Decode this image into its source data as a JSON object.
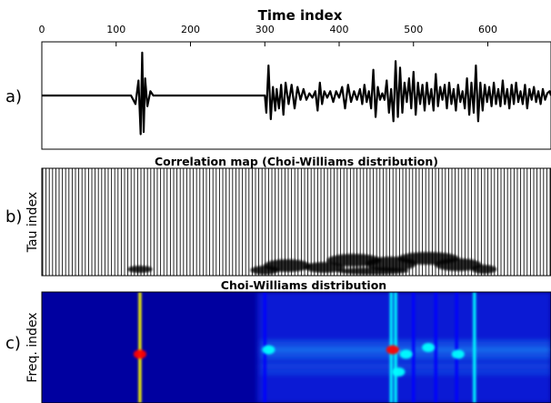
{
  "chart_data": [
    {
      "panel": "a)",
      "type": "line",
      "xlabel": "Time index",
      "xlim": [
        0,
        685
      ],
      "ylim": [
        -1.25,
        1.25
      ],
      "x_ticks": [
        0,
        100,
        200,
        300,
        400,
        500,
        600
      ],
      "series": [
        {
          "color": "#000000",
          "x": [
            0,
            120,
            126,
            130,
            133,
            135,
            137,
            139,
            142,
            146,
            150,
            300,
            302,
            305,
            308,
            311,
            314,
            316,
            319,
            322,
            325,
            328,
            332,
            336,
            340,
            344,
            348,
            352,
            356,
            360,
            364,
            368,
            371,
            374,
            377,
            380,
            384,
            388,
            392,
            396,
            400,
            404,
            408,
            412,
            416,
            420,
            424,
            428,
            431,
            434,
            437,
            440,
            443,
            446,
            449,
            452,
            455,
            458,
            461,
            464,
            467,
            470,
            473,
            476,
            479,
            482,
            485,
            488,
            491,
            494,
            497,
            500,
            503,
            506,
            509,
            512,
            515,
            518,
            521,
            524,
            527,
            530,
            533,
            536,
            539,
            542,
            545,
            548,
            551,
            554,
            557,
            560,
            563,
            566,
            569,
            572,
            575,
            578,
            581,
            584,
            587,
            590,
            593,
            596,
            599,
            602,
            605,
            608,
            611,
            614,
            617,
            620,
            623,
            626,
            629,
            632,
            635,
            638,
            641,
            644,
            647,
            650,
            653,
            656,
            659,
            662,
            665,
            668,
            671,
            674,
            677,
            680,
            683,
            685
          ],
          "y": [
            0,
            0,
            -0.2,
            0.35,
            -0.9,
            1.0,
            -0.85,
            0.4,
            -0.25,
            0.1,
            0,
            0,
            -0.4,
            0.7,
            -0.55,
            0.2,
            -0.35,
            0.15,
            -0.3,
            0.25,
            -0.45,
            0.3,
            -0.2,
            0.25,
            -0.3,
            0.2,
            -0.1,
            0.15,
            -0.1,
            0.05,
            -0.05,
            0.1,
            -0.35,
            0.3,
            -0.2,
            0.1,
            -0.05,
            0.1,
            -0.15,
            0.1,
            -0.05,
            0.2,
            -0.3,
            0.25,
            -0.15,
            0.1,
            -0.1,
            0.15,
            -0.2,
            0.25,
            -0.15,
            0.1,
            -0.3,
            0.6,
            -0.5,
            0.2,
            -0.1,
            0.05,
            -0.1,
            0.35,
            -0.4,
            0.15,
            -0.6,
            0.8,
            -0.5,
            0.65,
            -0.4,
            0.3,
            -0.15,
            0.4,
            -0.3,
            0.55,
            -0.45,
            0.3,
            -0.2,
            0.25,
            -0.35,
            0.3,
            -0.2,
            0.15,
            -0.35,
            0.5,
            -0.25,
            0.2,
            -0.1,
            0.25,
            -0.3,
            0.3,
            -0.2,
            0.15,
            -0.35,
            0.25,
            -0.15,
            0.1,
            -0.3,
            0.4,
            -0.45,
            0.3,
            -0.4,
            0.7,
            -0.6,
            0.3,
            -0.35,
            0.25,
            -0.15,
            0.2,
            -0.25,
            0.3,
            -0.2,
            0.15,
            -0.25,
            0.35,
            -0.2,
            0.15,
            -0.3,
            0.25,
            -0.2,
            0.3,
            -0.15,
            0.1,
            -0.2,
            0.25,
            -0.3,
            0.15,
            -0.1,
            0.2,
            -0.15,
            0.1,
            -0.2,
            0.15,
            -0.1,
            0.05,
            0.1,
            0
          ]
        }
      ]
    },
    {
      "panel": "b)",
      "type": "heatmap",
      "title": "Correlation map (Choi-Williams distribution)",
      "ylabel": "Tau index",
      "xlim": [
        0,
        685
      ]
    },
    {
      "panel": "c)",
      "type": "heatmap",
      "title": "Choi-Williams distribution",
      "ylabel": "Freq. index",
      "xlim": [
        0,
        685
      ],
      "colormap": [
        "#00007f",
        "#0000ff",
        "#00ffff",
        "#ffff00",
        "#ff0000"
      ],
      "vertical_lines": [
        {
          "x": 132,
          "strength": 0.75
        },
        {
          "x": 300,
          "strength": 0.35
        },
        {
          "x": 470,
          "strength": 0.55
        },
        {
          "x": 476,
          "strength": 0.45
        },
        {
          "x": 500,
          "strength": 0.35
        },
        {
          "x": 530,
          "strength": 0.3
        },
        {
          "x": 558,
          "strength": 0.3
        },
        {
          "x": 582,
          "strength": 0.45
        }
      ],
      "hot_spots": [
        {
          "x": 132,
          "f": 0.56,
          "strength": 0.9
        },
        {
          "x": 305,
          "f": 0.52,
          "strength": 0.55
        },
        {
          "x": 472,
          "f": 0.52,
          "strength": 1.0
        },
        {
          "x": 490,
          "f": 0.56,
          "strength": 0.6
        },
        {
          "x": 520,
          "f": 0.5,
          "strength": 0.55
        },
        {
          "x": 560,
          "f": 0.56,
          "strength": 0.5
        },
        {
          "x": 480,
          "f": 0.72,
          "strength": 0.45
        }
      ]
    }
  ]
}
